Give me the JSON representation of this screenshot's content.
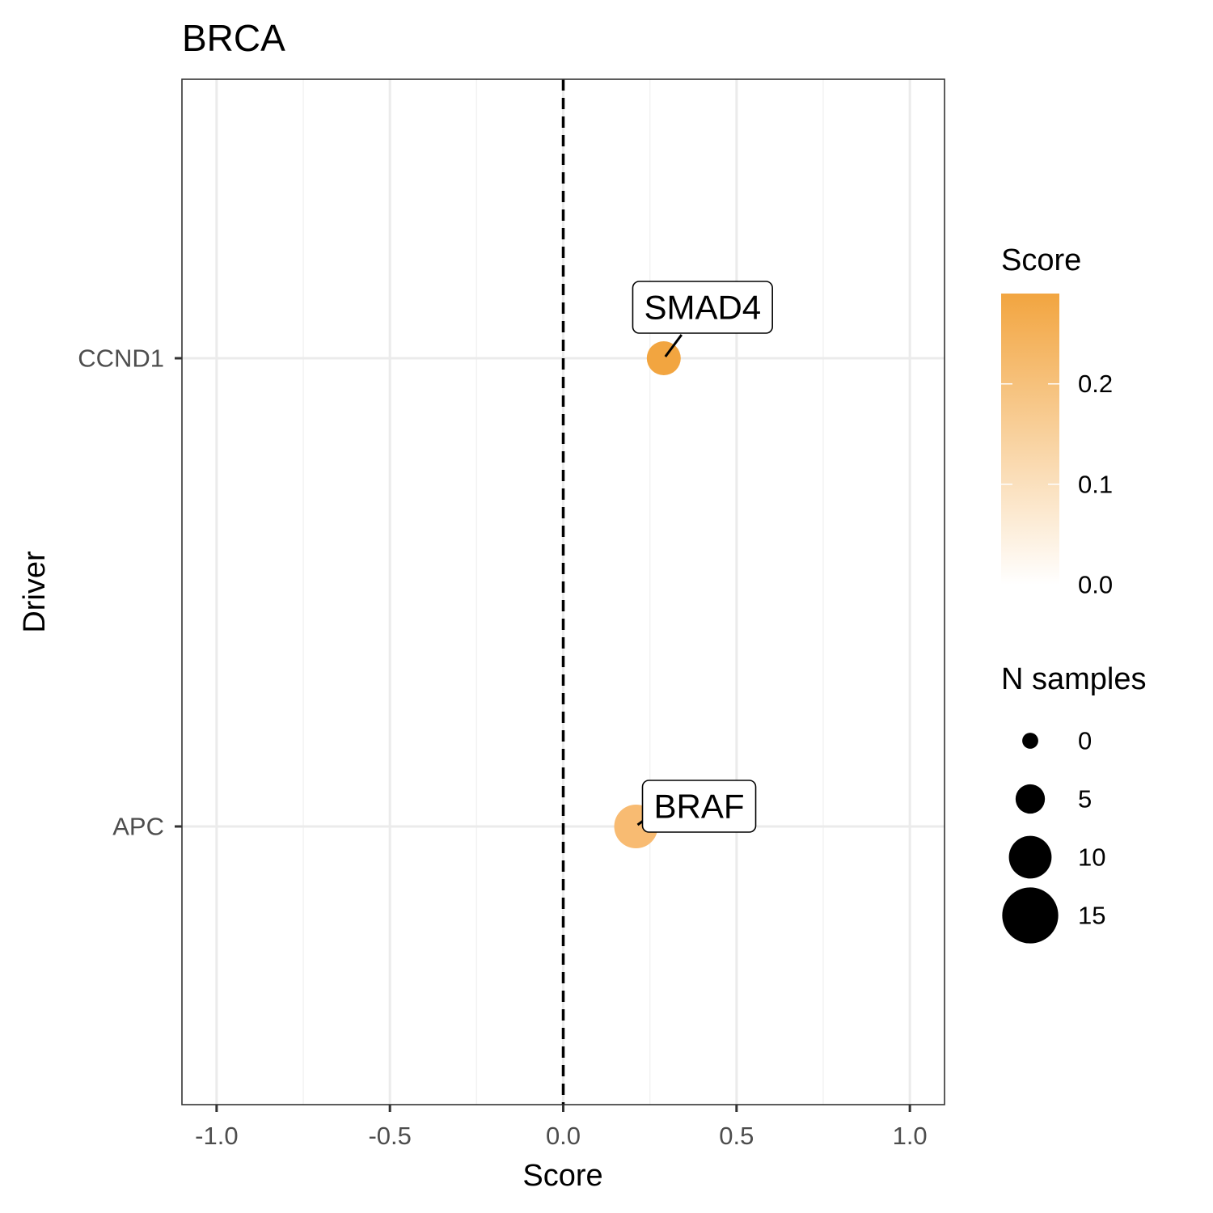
{
  "chart_data": {
    "type": "scatter",
    "title": "BRCA",
    "xlabel": "Score",
    "ylabel": "Driver",
    "xlim": [
      -1.1,
      1.1
    ],
    "x_ticks": [
      -1.0,
      -0.5,
      0.0,
      0.5,
      1.0
    ],
    "x_tick_labels": [
      "-1.0",
      "-0.5",
      "0.0",
      "0.5",
      "1.0"
    ],
    "y_categories": [
      "APC",
      "CCND1"
    ],
    "grid": true,
    "reference_line": {
      "x": 0,
      "style": "dashed",
      "color": "#000000"
    },
    "points": [
      {
        "driver": "CCND1",
        "score": 0.29,
        "n_samples": 8,
        "label": "SMAD4",
        "color": "#f2a540"
      },
      {
        "driver": "APC",
        "score": 0.21,
        "n_samples": 12,
        "label": "BRAF",
        "color": "#f8bb72"
      }
    ],
    "legend_color": {
      "title": "Score",
      "ticks": [
        0.0,
        0.1,
        0.2
      ],
      "tick_labels": [
        "0.0",
        "0.1",
        "0.2"
      ],
      "range": [
        0.0,
        0.29
      ],
      "color_low": "#ffffff",
      "color_high": "#f2a540"
    },
    "legend_size": {
      "title": "N samples",
      "values": [
        0,
        5,
        10,
        15
      ],
      "labels": [
        "0",
        "5",
        "10",
        "15"
      ]
    },
    "legend_placement": "right"
  }
}
